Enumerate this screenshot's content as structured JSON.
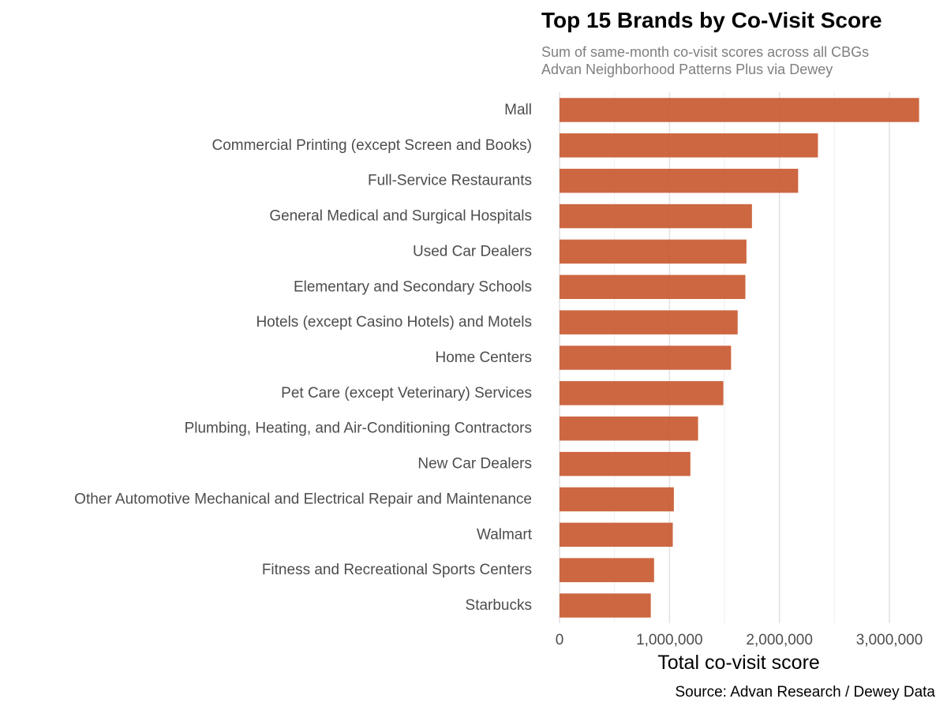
{
  "chart_data": {
    "type": "bar",
    "orientation": "horizontal",
    "title": "Top 15 Brands by Co-Visit Score",
    "subtitle_lines": [
      "Sum of same-month co-visit scores across all CBGs",
      "Advan Neighborhood Patterns Plus via Dewey"
    ],
    "xlabel": "Total co-visit score",
    "ylabel": "",
    "caption": "Source: Advan Research / Dewey Data",
    "xlim": [
      0,
      3330000
    ],
    "x_ticks": [
      0,
      1000000,
      2000000,
      3000000
    ],
    "x_tick_labels": [
      "0",
      "1,000,000",
      "2,000,000",
      "3,000,000"
    ],
    "grid": true,
    "legend": "none",
    "bar_color": "#c8562c",
    "categories": [
      "Mall",
      "Commercial Printing (except Screen and Books)",
      "Full-Service Restaurants",
      "General Medical and Surgical Hospitals",
      "Used Car Dealers",
      "Elementary and Secondary Schools",
      "Hotels (except Casino Hotels) and Motels",
      "Home Centers",
      "Pet Care (except Veterinary) Services",
      "Plumbing, Heating, and Air-Conditioning Contractors",
      "New Car Dealers",
      "Other Automotive Mechanical and Electrical Repair and Maintenance",
      "Walmart",
      "Fitness and Recreational Sports Centers",
      "Starbucks"
    ],
    "values": [
      3270000,
      2350000,
      2170000,
      1750000,
      1700000,
      1690000,
      1620000,
      1560000,
      1490000,
      1260000,
      1190000,
      1040000,
      1030000,
      860000,
      830000
    ]
  }
}
